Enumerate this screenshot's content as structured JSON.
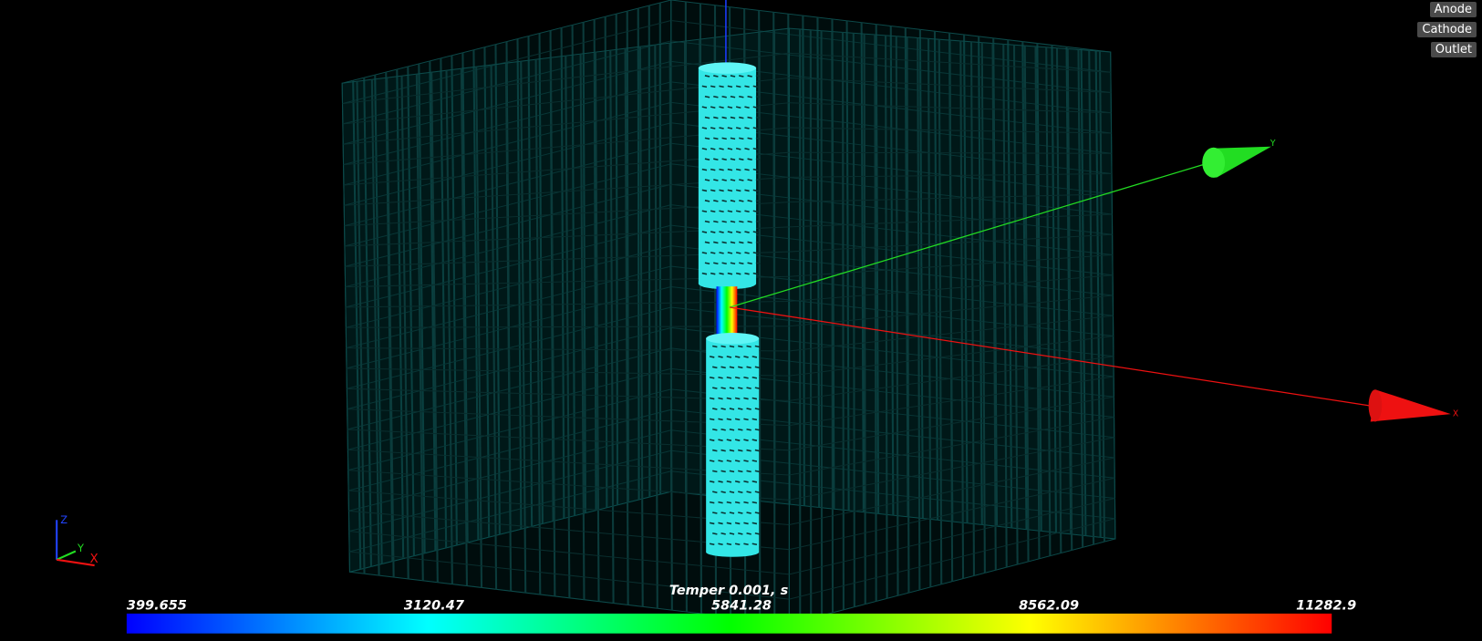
{
  "buttons": [
    "Anode",
    "Cathode",
    "Outlet"
  ],
  "scene_axes": {
    "x": "X",
    "y": "Y",
    "z": "Z"
  },
  "colorbar": {
    "title": "Temper 0.001, s",
    "ticks": [
      399.655,
      3120.47,
      5841.28,
      8562.09,
      11282.9
    ]
  }
}
